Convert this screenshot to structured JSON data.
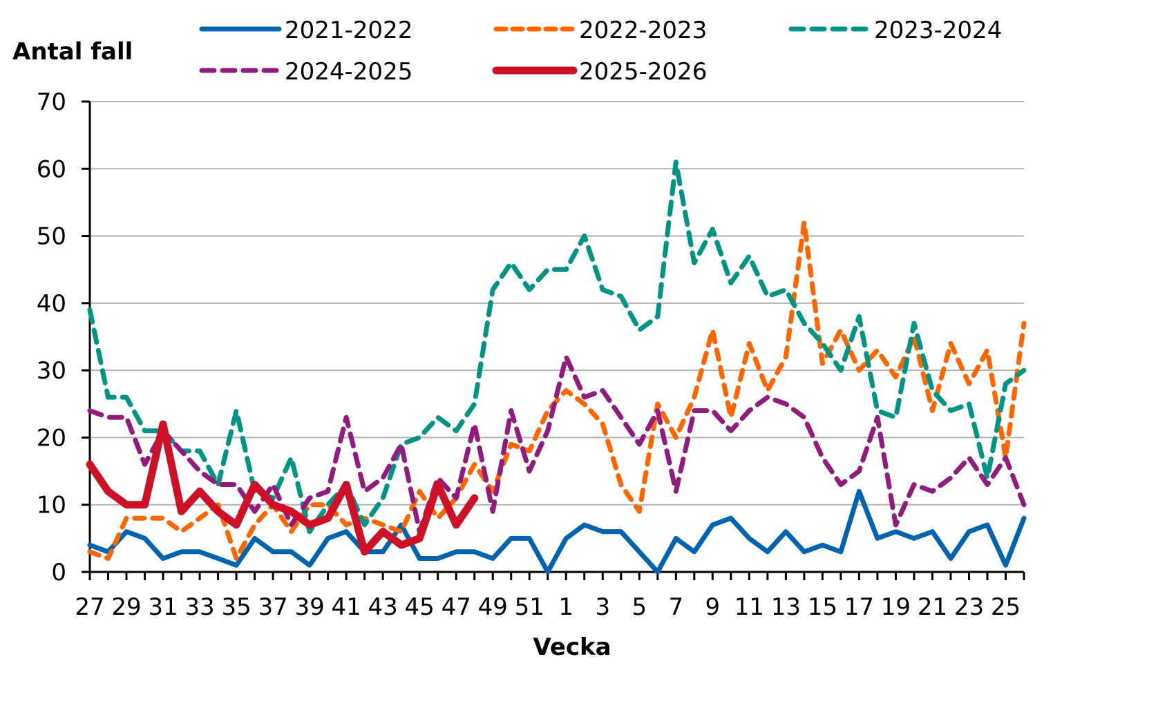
{
  "chart_data": {
    "type": "line",
    "title": "",
    "xlabel": "Vecka",
    "ylabel": "Antal fall",
    "ylim": [
      0,
      70
    ],
    "yticks": [
      0,
      10,
      20,
      30,
      40,
      50,
      60,
      70
    ],
    "grid": "horizontal",
    "legend_position": "top",
    "x": [
      27,
      28,
      29,
      30,
      31,
      32,
      33,
      34,
      35,
      36,
      37,
      38,
      39,
      40,
      41,
      42,
      43,
      44,
      45,
      46,
      47,
      48,
      49,
      50,
      51,
      52,
      1,
      2,
      3,
      4,
      5,
      6,
      7,
      8,
      9,
      10,
      11,
      12,
      13,
      14,
      15,
      16,
      17,
      18,
      19,
      20,
      21,
      22,
      23,
      24,
      25,
      26
    ],
    "xtick_labels": [
      "27",
      "29",
      "31",
      "33",
      "35",
      "37",
      "39",
      "41",
      "43",
      "45",
      "47",
      "49",
      "51",
      "1",
      "3",
      "5",
      "7",
      "9",
      "11",
      "13",
      "15",
      "17",
      "19",
      "21",
      "23",
      "25"
    ],
    "series": [
      {
        "name": "2021-2022",
        "color": "#0063AF",
        "style": "solid",
        "values": [
          4,
          3,
          6,
          5,
          2,
          3,
          3,
          2,
          1,
          5,
          3,
          3,
          1,
          5,
          6,
          3,
          3,
          7,
          2,
          2,
          3,
          3,
          2,
          5,
          5,
          0,
          5,
          7,
          6,
          6,
          3,
          0,
          5,
          3,
          7,
          8,
          5,
          3,
          6,
          3,
          4,
          3,
          12,
          5,
          6,
          5,
          6,
          2,
          6,
          7,
          1,
          8
        ]
      },
      {
        "name": "2022-2023",
        "color": "#FF6600",
        "style": "dashed",
        "values": [
          3,
          2,
          8,
          8,
          8,
          6,
          8,
          10,
          2,
          7,
          10,
          6,
          10,
          10,
          7,
          8,
          7,
          6,
          12,
          8,
          11,
          16,
          12,
          19,
          18,
          24,
          27,
          25,
          22,
          13,
          9,
          25,
          20,
          26,
          36,
          23,
          34,
          27,
          32,
          52,
          31,
          36,
          30,
          33,
          29,
          35,
          24,
          34,
          28,
          33,
          17,
          37
        ]
      },
      {
        "name": "2023-2024",
        "color": "#009485",
        "style": "dashed",
        "values": [
          39,
          26,
          26,
          21,
          21,
          18,
          18,
          13,
          24,
          12,
          11,
          17,
          6,
          10,
          13,
          7,
          11,
          19,
          20,
          23,
          21,
          25,
          42,
          46,
          42,
          45,
          45,
          50,
          42,
          41,
          36,
          38,
          61,
          46,
          51,
          43,
          47,
          41,
          42,
          37,
          34,
          30,
          38,
          24,
          23,
          37,
          27,
          24,
          25,
          14,
          28,
          30
        ]
      },
      {
        "name": "2024-2025",
        "color": "#911B7E",
        "style": "dashed",
        "values": [
          24,
          23,
          23,
          16,
          21,
          18,
          15,
          13,
          13,
          9,
          13,
          7,
          11,
          12,
          23,
          12,
          14,
          19,
          6,
          14,
          11,
          22,
          9,
          24,
          15,
          21,
          32,
          26,
          27,
          23,
          19,
          24,
          12,
          24,
          24,
          21,
          24,
          26,
          25,
          23,
          17,
          13,
          15,
          23,
          7,
          13,
          12,
          14,
          17,
          13,
          17,
          10
        ]
      },
      {
        "name": "2025-2026",
        "color": "#CE1126",
        "style": "solid-thick",
        "values": [
          16,
          12,
          10,
          10,
          22,
          9,
          12,
          9,
          7,
          13,
          10,
          9,
          7,
          8,
          13,
          3,
          6,
          4,
          5,
          13,
          7,
          11
        ]
      }
    ]
  },
  "legend": {
    "items": [
      {
        "label": "2021-2022",
        "color": "#0063AF",
        "dash": ""
      },
      {
        "label": "2022-2023",
        "color": "#FF6600",
        "dash": "14 10"
      },
      {
        "label": "2023-2024",
        "color": "#009485",
        "dash": "18 12"
      },
      {
        "label": "2024-2025",
        "color": "#911B7E",
        "dash": "18 12"
      },
      {
        "label": "2025-2026",
        "color": "#CE1126",
        "dash": ""
      }
    ]
  },
  "axes": {
    "ylabel": "Antal fall",
    "xlabel": "Vecka"
  }
}
